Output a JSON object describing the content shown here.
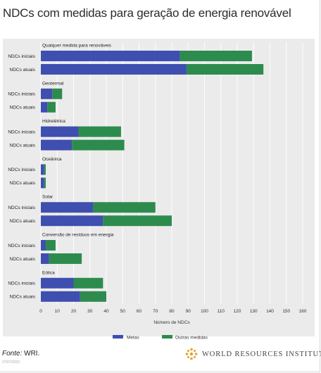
{
  "title": "NDCs com medidas para geração de energia renovável",
  "footer": {
    "source_label": "Fonte:",
    "source_value": "WRI.",
    "date": "27/07/2023",
    "brand": "WORLD RESOURCES INSTITUTE"
  },
  "colors": {
    "metas": "#3f4fb0",
    "outras": "#2e8b4e",
    "panel": "#ebebeb"
  },
  "chart_data": {
    "type": "bar",
    "orientation": "horizontal",
    "stacked": true,
    "xlabel": "Número de NDCs",
    "xlim": [
      0,
      160
    ],
    "xticks": [
      0,
      10,
      20,
      30,
      40,
      50,
      60,
      70,
      80,
      90,
      100,
      110,
      120,
      130,
      140,
      150,
      160
    ],
    "grid": true,
    "legend_position": "bottom",
    "series_names": [
      "Metas",
      "Outras medidas"
    ],
    "groups": [
      {
        "name": "Qualquer medida para renováveis",
        "rows": [
          {
            "label": "NDCs iniciais",
            "metas": 85,
            "outras": 44
          },
          {
            "label": "NDCs atuais",
            "metas": 89,
            "outras": 47
          }
        ]
      },
      {
        "name": "Geotermal",
        "rows": [
          {
            "label": "NDCs iniciais",
            "metas": 7,
            "outras": 6
          },
          {
            "label": "NDCs atuais",
            "metas": 4,
            "outras": 5
          }
        ]
      },
      {
        "name": "Hidrelétrica",
        "rows": [
          {
            "label": "NDCs iniciais",
            "metas": 23,
            "outras": 26
          },
          {
            "label": "NDCs atuais",
            "metas": 19,
            "outras": 32
          }
        ]
      },
      {
        "name": "Oceânica",
        "rows": [
          {
            "label": "NDCs iniciais",
            "metas": 2,
            "outras": 1
          },
          {
            "label": "NDCs atuais",
            "metas": 2,
            "outras": 1
          }
        ]
      },
      {
        "name": "Solar",
        "rows": [
          {
            "label": "NDCs iniciais",
            "metas": 32,
            "outras": 38
          },
          {
            "label": "NDCs atuais",
            "metas": 38,
            "outras": 42
          }
        ]
      },
      {
        "name": "Conversão de resíduos em energia",
        "rows": [
          {
            "label": "NDCs iniciais",
            "metas": 3,
            "outras": 6
          },
          {
            "label": "NDCs atuais",
            "metas": 5,
            "outras": 20
          }
        ]
      },
      {
        "name": "Eólica",
        "rows": [
          {
            "label": "NDCs iniciais",
            "metas": 20,
            "outras": 18
          },
          {
            "label": "NDCs atuais",
            "metas": 24,
            "outras": 16
          }
        ]
      }
    ]
  }
}
